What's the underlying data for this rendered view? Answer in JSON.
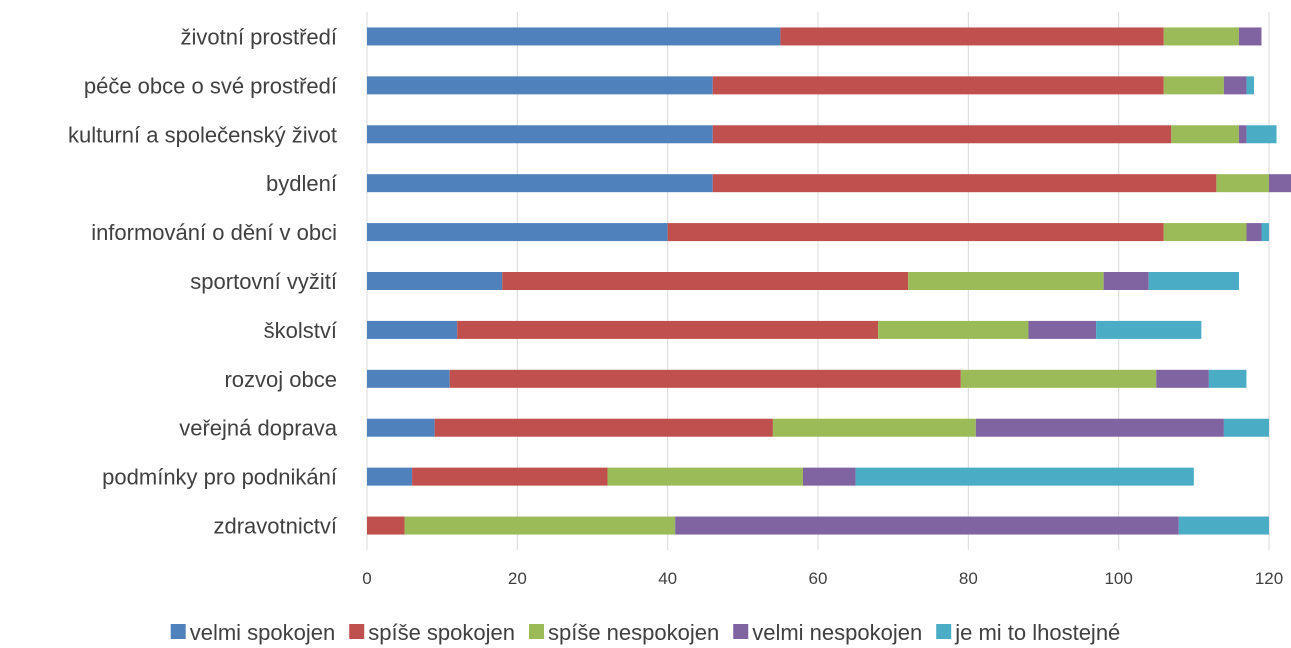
{
  "chart_data": {
    "type": "bar",
    "orientation": "horizontal",
    "stacked": true,
    "title": "",
    "xlabel": "",
    "ylabel": "",
    "xlim": [
      0,
      120
    ],
    "xticks": [
      0,
      20,
      40,
      60,
      80,
      100,
      120
    ],
    "grid": true,
    "legend_position": "bottom",
    "categories": [
      "životní prostředí",
      "péče obce o své prostředí",
      "kulturní a společenský život",
      "bydlení",
      "informování o dění v obci",
      "sportovní vyžití",
      "školství",
      "rozvoj obce",
      "veřejná doprava",
      "podmínky pro podnikání",
      "zdravotnictví"
    ],
    "series": [
      {
        "name": "velmi spokojen",
        "color": "#4f81bd",
        "values": [
          55,
          46,
          46,
          46,
          40,
          18,
          12,
          11,
          9,
          6,
          0
        ]
      },
      {
        "name": "spíše spokojen",
        "color": "#c0504d",
        "values": [
          51,
          60,
          61,
          67,
          66,
          54,
          56,
          68,
          45,
          26,
          5
        ]
      },
      {
        "name": "spíše nespokojen",
        "color": "#9bbb59",
        "values": [
          10,
          8,
          9,
          7,
          11,
          26,
          20,
          26,
          27,
          26,
          36
        ]
      },
      {
        "name": "velmi nespokojen",
        "color": "#8064a2",
        "values": [
          3,
          3,
          1,
          3,
          2,
          6,
          9,
          7,
          33,
          7,
          67
        ]
      },
      {
        "name": "je mi to lhostejné",
        "color": "#4bacc6",
        "values": [
          0,
          1,
          4,
          0,
          1,
          12,
          14,
          5,
          6,
          45,
          12
        ]
      }
    ]
  }
}
